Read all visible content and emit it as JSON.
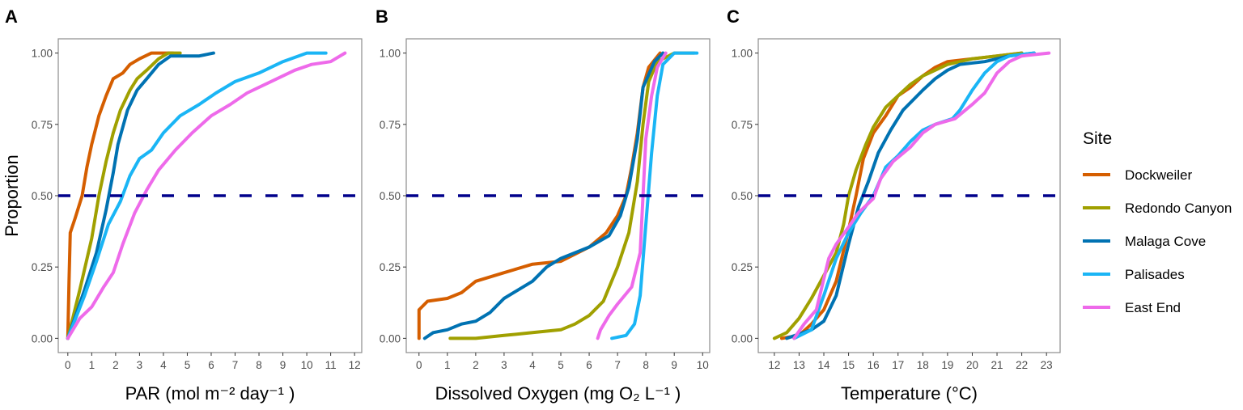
{
  "chart_data": [
    {
      "type": "line",
      "panel_label": "A",
      "title": "",
      "xlabel": "PAR (mol m⁻² day⁻¹ )",
      "ylabel": "Proportion",
      "xlim": [
        -0.4,
        12.3
      ],
      "ylim": [
        -0.05,
        1.05
      ],
      "xticks": [
        0,
        1,
        2,
        3,
        4,
        5,
        6,
        7,
        8,
        9,
        10,
        11,
        12
      ],
      "yticks": [
        "0.00",
        "0.25",
        "0.50",
        "0.75",
        "1.00"
      ],
      "reference_line": {
        "y": 0.5,
        "style": "dashed"
      },
      "series": [
        {
          "name": "Dockweiler",
          "points": [
            [
              0,
              0
            ],
            [
              0.05,
              0.2
            ],
            [
              0.1,
              0.37
            ],
            [
              0.3,
              0.42
            ],
            [
              0.6,
              0.5
            ],
            [
              0.8,
              0.6
            ],
            [
              1.0,
              0.68
            ],
            [
              1.3,
              0.78
            ],
            [
              1.6,
              0.85
            ],
            [
              1.9,
              0.91
            ],
            [
              2.3,
              0.93
            ],
            [
              2.6,
              0.96
            ],
            [
              3.0,
              0.98
            ],
            [
              3.5,
              1.0
            ],
            [
              4.4,
              1.0
            ]
          ]
        },
        {
          "name": "Redondo Canyon",
          "points": [
            [
              0,
              0
            ],
            [
              0.5,
              0.17
            ],
            [
              1.0,
              0.35
            ],
            [
              1.3,
              0.5
            ],
            [
              1.6,
              0.62
            ],
            [
              1.9,
              0.72
            ],
            [
              2.2,
              0.8
            ],
            [
              2.6,
              0.87
            ],
            [
              2.9,
              0.91
            ],
            [
              3.3,
              0.94
            ],
            [
              3.8,
              0.98
            ],
            [
              4.2,
              1.0
            ],
            [
              4.7,
              1.0
            ]
          ]
        },
        {
          "name": "Malaga Cove",
          "points": [
            [
              0,
              0
            ],
            [
              0.7,
              0.17
            ],
            [
              1.2,
              0.3
            ],
            [
              1.6,
              0.45
            ],
            [
              1.9,
              0.58
            ],
            [
              2.1,
              0.68
            ],
            [
              2.5,
              0.8
            ],
            [
              2.9,
              0.87
            ],
            [
              3.3,
              0.91
            ],
            [
              3.8,
              0.96
            ],
            [
              4.3,
              0.99
            ],
            [
              5.5,
              0.99
            ],
            [
              6.1,
              1.0
            ]
          ]
        },
        {
          "name": "Palisades",
          "points": [
            [
              0,
              0
            ],
            [
              0.7,
              0.15
            ],
            [
              1.2,
              0.27
            ],
            [
              1.7,
              0.4
            ],
            [
              2.2,
              0.48
            ],
            [
              2.6,
              0.57
            ],
            [
              3.0,
              0.63
            ],
            [
              3.5,
              0.66
            ],
            [
              4.0,
              0.72
            ],
            [
              4.7,
              0.78
            ],
            [
              5.5,
              0.82
            ],
            [
              6.2,
              0.86
            ],
            [
              7.0,
              0.9
            ],
            [
              8.0,
              0.93
            ],
            [
              9.0,
              0.97
            ],
            [
              10.0,
              1.0
            ],
            [
              10.8,
              1.0
            ]
          ]
        },
        {
          "name": "East End",
          "points": [
            [
              0,
              0
            ],
            [
              0.5,
              0.07
            ],
            [
              1.0,
              0.11
            ],
            [
              1.5,
              0.18
            ],
            [
              1.9,
              0.23
            ],
            [
              2.3,
              0.33
            ],
            [
              2.8,
              0.44
            ],
            [
              3.3,
              0.52
            ],
            [
              3.8,
              0.59
            ],
            [
              4.5,
              0.66
            ],
            [
              5.2,
              0.72
            ],
            [
              6.0,
              0.78
            ],
            [
              6.8,
              0.82
            ],
            [
              7.5,
              0.86
            ],
            [
              8.5,
              0.9
            ],
            [
              9.5,
              0.94
            ],
            [
              10.2,
              0.96
            ],
            [
              11.0,
              0.97
            ],
            [
              11.6,
              1.0
            ]
          ]
        }
      ]
    },
    {
      "type": "line",
      "panel_label": "B",
      "title": "",
      "xlabel": "Dissolved Oxygen (mg O₂ L⁻¹ )",
      "ylabel": "",
      "xlim": [
        -0.45,
        10.25
      ],
      "ylim": [
        -0.05,
        1.05
      ],
      "xticks": [
        0,
        1,
        2,
        3,
        4,
        5,
        6,
        7,
        8,
        9,
        10
      ],
      "yticks": [
        "0.00",
        "0.25",
        "0.50",
        "0.75",
        "1.00"
      ],
      "reference_line": {
        "y": 0.5,
        "style": "dashed"
      },
      "series": [
        {
          "name": "Dockweiler",
          "points": [
            [
              0,
              0
            ],
            [
              0,
              0.1
            ],
            [
              0.3,
              0.13
            ],
            [
              1.0,
              0.14
            ],
            [
              1.5,
              0.16
            ],
            [
              2,
              0.2
            ],
            [
              3,
              0.23
            ],
            [
              4,
              0.26
            ],
            [
              5,
              0.27
            ],
            [
              6,
              0.32
            ],
            [
              6.6,
              0.37
            ],
            [
              7,
              0.43
            ],
            [
              7.3,
              0.5
            ],
            [
              7.5,
              0.6
            ],
            [
              7.7,
              0.72
            ],
            [
              7.9,
              0.88
            ],
            [
              8.1,
              0.95
            ],
            [
              8.5,
              1.0
            ]
          ]
        },
        {
          "name": "Redondo Canyon",
          "points": [
            [
              1.1,
              0
            ],
            [
              2,
              0
            ],
            [
              3,
              0.01
            ],
            [
              4,
              0.02
            ],
            [
              5,
              0.03
            ],
            [
              5.5,
              0.05
            ],
            [
              6,
              0.08
            ],
            [
              6.5,
              0.13
            ],
            [
              7,
              0.25
            ],
            [
              7.4,
              0.37
            ],
            [
              7.7,
              0.55
            ],
            [
              7.9,
              0.75
            ],
            [
              8.1,
              0.9
            ],
            [
              8.4,
              0.97
            ],
            [
              9,
              1.0
            ],
            [
              9.7,
              1.0
            ]
          ]
        },
        {
          "name": "Malaga Cove",
          "points": [
            [
              0.2,
              0
            ],
            [
              0.5,
              0.02
            ],
            [
              1,
              0.03
            ],
            [
              1.5,
              0.05
            ],
            [
              2,
              0.06
            ],
            [
              2.5,
              0.09
            ],
            [
              3,
              0.14
            ],
            [
              3.5,
              0.17
            ],
            [
              4,
              0.2
            ],
            [
              4.5,
              0.25
            ],
            [
              5,
              0.28
            ],
            [
              6,
              0.32
            ],
            [
              6.7,
              0.36
            ],
            [
              7.1,
              0.43
            ],
            [
              7.4,
              0.53
            ],
            [
              7.7,
              0.7
            ],
            [
              7.9,
              0.88
            ],
            [
              8.3,
              0.97
            ],
            [
              8.6,
              1.0
            ]
          ]
        },
        {
          "name": "Palisades",
          "points": [
            [
              6.8,
              0
            ],
            [
              7.3,
              0.01
            ],
            [
              7.6,
              0.05
            ],
            [
              7.8,
              0.15
            ],
            [
              8.0,
              0.4
            ],
            [
              8.2,
              0.65
            ],
            [
              8.4,
              0.85
            ],
            [
              8.6,
              0.96
            ],
            [
              9.0,
              1.0
            ],
            [
              9.8,
              1.0
            ]
          ]
        },
        {
          "name": "East End",
          "points": [
            [
              6.3,
              0
            ],
            [
              6.4,
              0.03
            ],
            [
              6.7,
              0.08
            ],
            [
              7.0,
              0.12
            ],
            [
              7.5,
              0.18
            ],
            [
              7.8,
              0.3
            ],
            [
              7.9,
              0.5
            ],
            [
              8.0,
              0.7
            ],
            [
              8.2,
              0.85
            ],
            [
              8.4,
              0.95
            ],
            [
              8.7,
              1.0
            ]
          ]
        }
      ]
    },
    {
      "type": "line",
      "panel_label": "C",
      "title": "",
      "xlabel": "Temperature (°C)",
      "ylabel": "",
      "xlim": [
        11.35,
        23.55
      ],
      "ylim": [
        -0.05,
        1.05
      ],
      "xticks": [
        12,
        13,
        14,
        15,
        16,
        17,
        18,
        19,
        20,
        21,
        22,
        23
      ],
      "yticks": [
        "0.00",
        "0.25",
        "0.50",
        "0.75",
        "1.00"
      ],
      "reference_line": {
        "y": 0.5,
        "style": "dashed"
      },
      "series": [
        {
          "name": "Dockweiler",
          "points": [
            [
              12.3,
              0
            ],
            [
              13,
              0.01
            ],
            [
              13.5,
              0.05
            ],
            [
              14,
              0.1
            ],
            [
              14.5,
              0.2
            ],
            [
              15,
              0.38
            ],
            [
              15.3,
              0.5
            ],
            [
              15.6,
              0.63
            ],
            [
              16,
              0.72
            ],
            [
              16.5,
              0.78
            ],
            [
              17,
              0.85
            ],
            [
              17.5,
              0.88
            ],
            [
              18,
              0.92
            ],
            [
              18.5,
              0.95
            ],
            [
              19,
              0.97
            ],
            [
              20,
              0.98
            ],
            [
              21,
              0.99
            ],
            [
              22,
              1.0
            ]
          ]
        },
        {
          "name": "Redondo Canyon",
          "points": [
            [
              12,
              0
            ],
            [
              12.5,
              0.02
            ],
            [
              13,
              0.07
            ],
            [
              13.5,
              0.14
            ],
            [
              14,
              0.22
            ],
            [
              14.5,
              0.3
            ],
            [
              14.8,
              0.4
            ],
            [
              15,
              0.5
            ],
            [
              15.3,
              0.59
            ],
            [
              15.7,
              0.68
            ],
            [
              16,
              0.74
            ],
            [
              16.5,
              0.81
            ],
            [
              17,
              0.85
            ],
            [
              17.5,
              0.89
            ],
            [
              18,
              0.92
            ],
            [
              19,
              0.96
            ],
            [
              20,
              0.98
            ],
            [
              21,
              0.99
            ],
            [
              22,
              1.0
            ]
          ]
        },
        {
          "name": "Malaga Cove",
          "points": [
            [
              12.5,
              0
            ],
            [
              13.5,
              0.03
            ],
            [
              14,
              0.06
            ],
            [
              14.5,
              0.15
            ],
            [
              15,
              0.33
            ],
            [
              15.4,
              0.46
            ],
            [
              15.8,
              0.55
            ],
            [
              16.2,
              0.65
            ],
            [
              16.7,
              0.73
            ],
            [
              17.2,
              0.8
            ],
            [
              18,
              0.87
            ],
            [
              18.5,
              0.91
            ],
            [
              19,
              0.94
            ],
            [
              19.5,
              0.96
            ],
            [
              20.5,
              0.97
            ],
            [
              21.5,
              0.99
            ],
            [
              22.5,
              1.0
            ]
          ]
        },
        {
          "name": "Palisades",
          "points": [
            [
              12.8,
              0
            ],
            [
              13.5,
              0.03
            ],
            [
              14,
              0.15
            ],
            [
              14.5,
              0.28
            ],
            [
              15,
              0.37
            ],
            [
              15.5,
              0.44
            ],
            [
              16,
              0.5
            ],
            [
              16.5,
              0.6
            ],
            [
              17,
              0.64
            ],
            [
              17.5,
              0.69
            ],
            [
              18,
              0.73
            ],
            [
              18.5,
              0.75
            ],
            [
              19.2,
              0.77
            ],
            [
              19.5,
              0.8
            ],
            [
              20,
              0.87
            ],
            [
              20.5,
              0.93
            ],
            [
              21,
              0.97
            ],
            [
              21.5,
              0.99
            ],
            [
              22.5,
              1.0
            ]
          ]
        },
        {
          "name": "East End",
          "points": [
            [
              12.8,
              0
            ],
            [
              13.2,
              0.05
            ],
            [
              13.7,
              0.1
            ],
            [
              14.2,
              0.28
            ],
            [
              14.5,
              0.33
            ],
            [
              15,
              0.39
            ],
            [
              15.4,
              0.44
            ],
            [
              16,
              0.49
            ],
            [
              16.3,
              0.56
            ],
            [
              16.8,
              0.62
            ],
            [
              17.5,
              0.67
            ],
            [
              18,
              0.72
            ],
            [
              18.5,
              0.75
            ],
            [
              19.3,
              0.77
            ],
            [
              20,
              0.82
            ],
            [
              20.5,
              0.86
            ],
            [
              21,
              0.93
            ],
            [
              21.5,
              0.97
            ],
            [
              22,
              0.99
            ],
            [
              23.1,
              1.0
            ]
          ]
        }
      ]
    }
  ],
  "legend": {
    "title": "Site",
    "placement": "right",
    "items": [
      {
        "label": "Dockweiler",
        "color": "#D55E00"
      },
      {
        "label": "Redondo Canyon",
        "color": "#A0A000"
      },
      {
        "label": "Malaga Cove",
        "color": "#0072B2"
      },
      {
        "label": "Palisades",
        "color": "#1AB5F5"
      },
      {
        "label": "East End",
        "color": "#EE6AEA"
      }
    ]
  },
  "colors": {
    "reference_line": "#00008B",
    "panel_border": "#8c8c8c"
  }
}
